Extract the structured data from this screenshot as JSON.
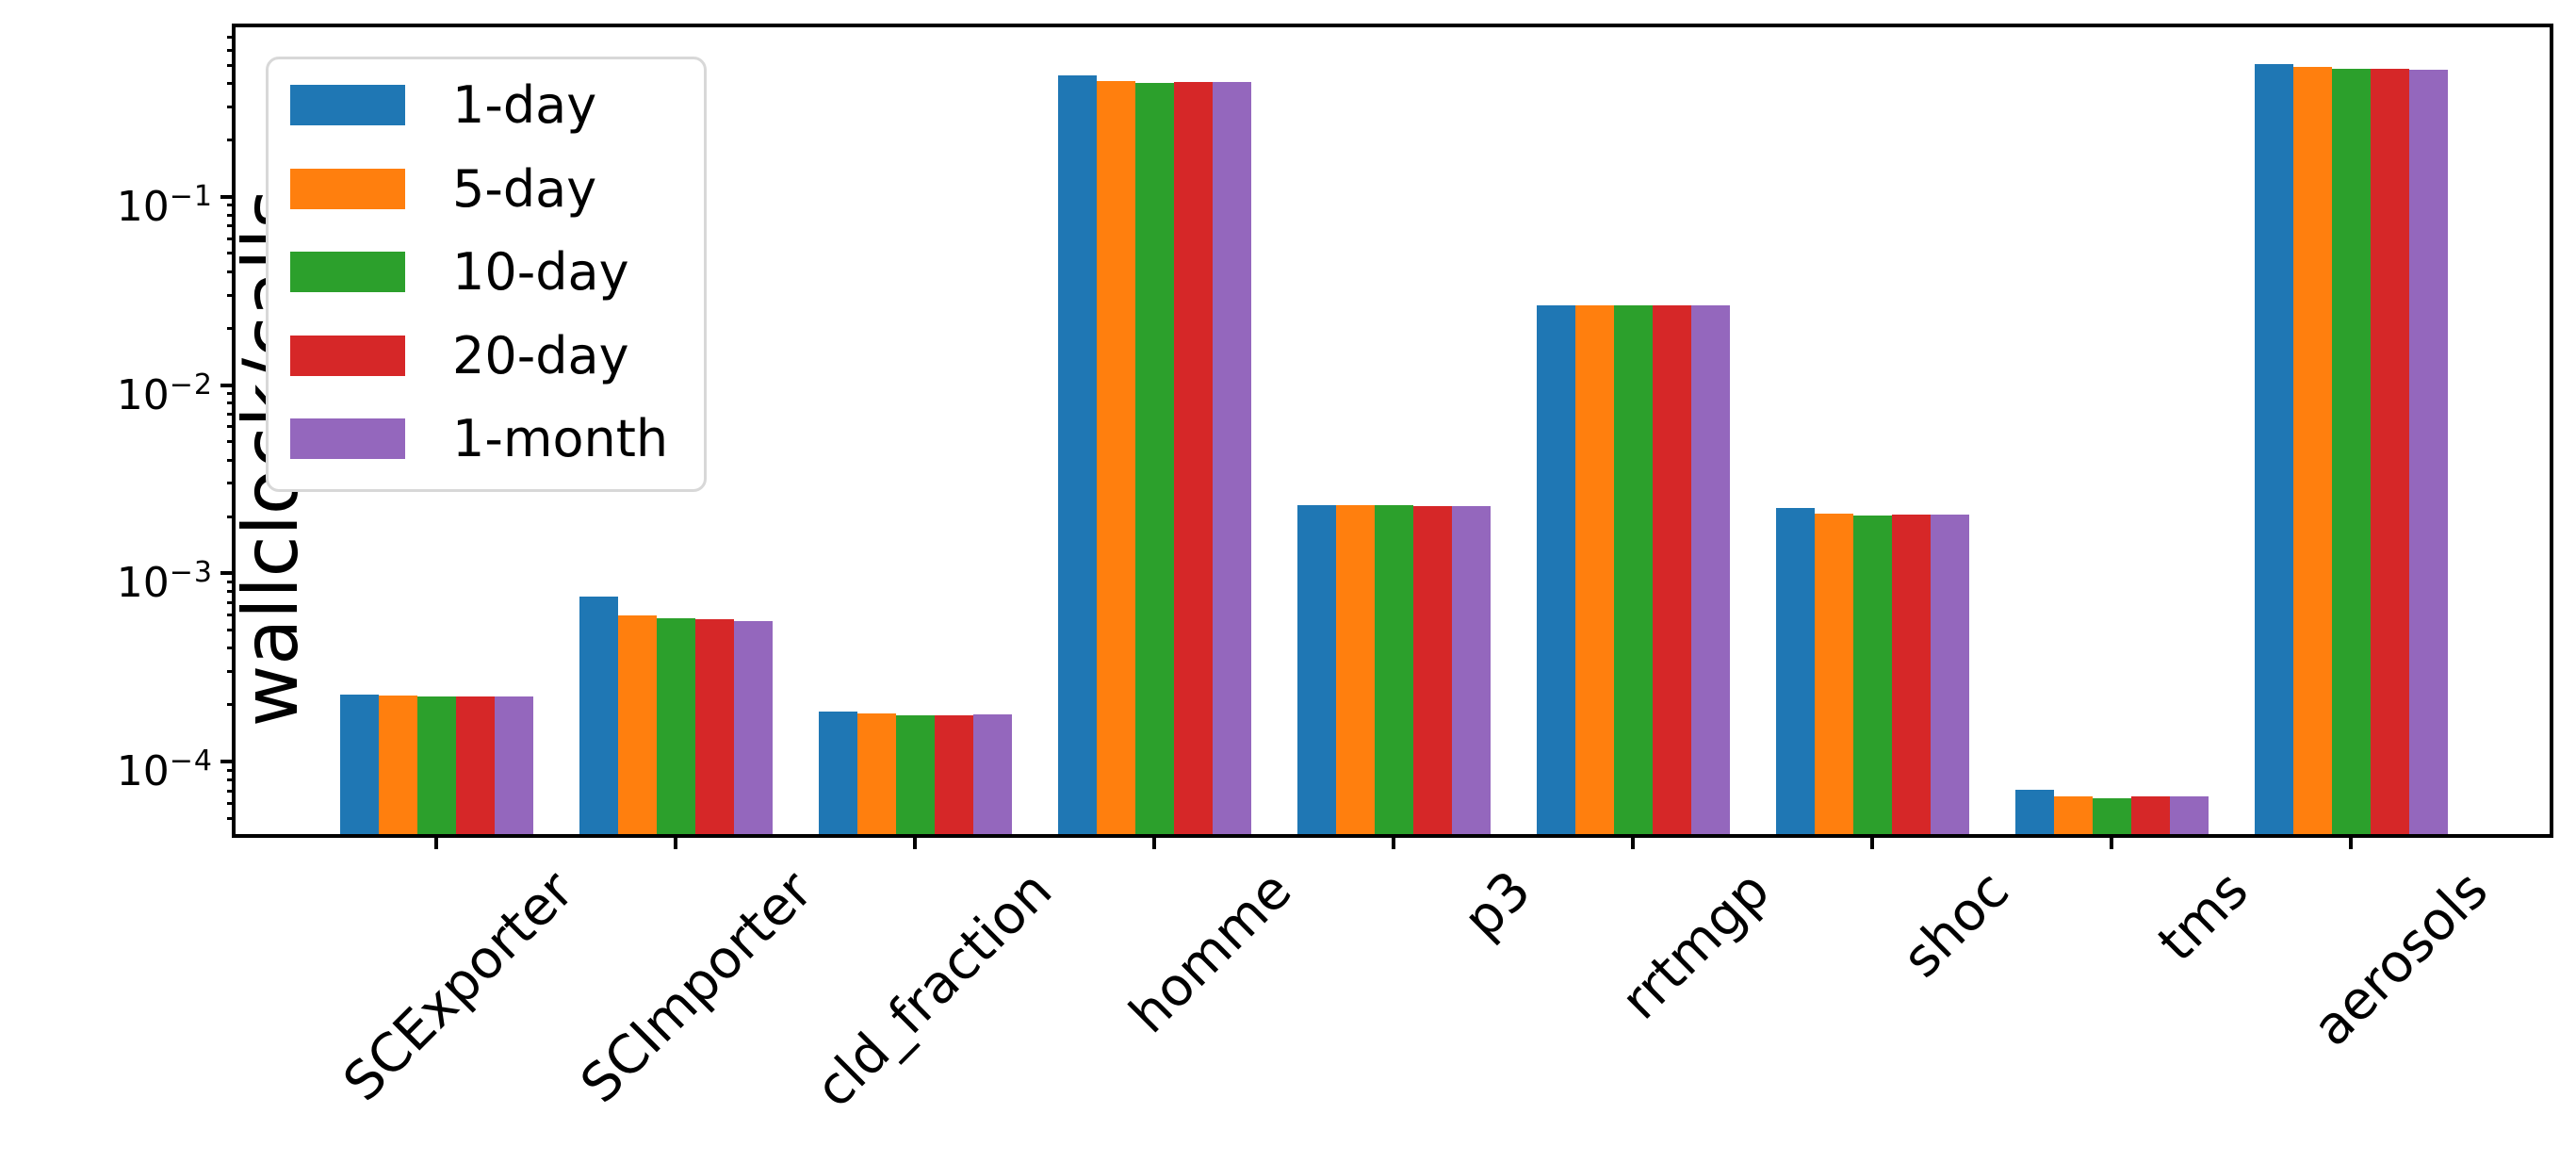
{
  "chart_data": {
    "type": "bar",
    "title": "",
    "xlabel": "",
    "ylabel": "wallclock/calls",
    "yscale": "log",
    "ylim": [
      4.12e-05,
      0.794
    ],
    "ytick_exponents": [
      -1,
      -2,
      -3,
      -4
    ],
    "grid": false,
    "legend_position": "upper left",
    "categories": [
      "SCExporter",
      "SCImporter",
      "cld_fraction",
      "homme",
      "p3",
      "rrtmgp",
      "shoc",
      "tms",
      "aerosols"
    ],
    "series": [
      {
        "name": "1-day",
        "color": "#1f77b4",
        "values": [
          0.000226,
          0.00075,
          0.000184,
          0.442,
          0.00229,
          0.0265,
          0.00223,
          7.1e-05,
          0.507
        ]
      },
      {
        "name": "5-day",
        "color": "#ff7f0e",
        "values": [
          0.000224,
          0.000596,
          0.00018,
          0.412,
          0.00229,
          0.0265,
          0.00207,
          6.5e-05,
          0.49
        ]
      },
      {
        "name": "10-day",
        "color": "#2ca02c",
        "values": [
          0.000221,
          0.000575,
          0.000176,
          0.403,
          0.00229,
          0.0264,
          0.00202,
          6.4e-05,
          0.479
        ]
      },
      {
        "name": "20-day",
        "color": "#d62728",
        "values": [
          0.000221,
          0.000569,
          0.000176,
          0.407,
          0.00228,
          0.0264,
          0.00204,
          6.5e-05,
          0.479
        ]
      },
      {
        "name": "1-month",
        "color": "#9467bd",
        "values": [
          0.000223,
          0.000556,
          0.000178,
          0.407,
          0.00228,
          0.0265,
          0.00204,
          6.5e-05,
          0.473
        ]
      }
    ]
  }
}
